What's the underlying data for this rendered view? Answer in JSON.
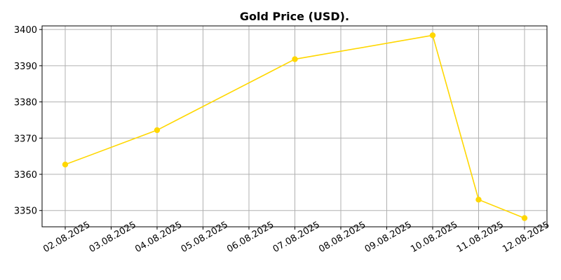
{
  "chart_data": {
    "type": "line",
    "title": "Gold Price (USD).",
    "xlabel": "",
    "ylabel": "",
    "x_ticks": [
      "02.08.2025",
      "03.08.2025",
      "04.08.2025",
      "05.08.2025",
      "06.08.2025",
      "07.08.2025",
      "08.08.2025",
      "09.08.2025",
      "10.08.2025",
      "11.08.2025",
      "12.08.2025"
    ],
    "y_ticks": [
      3350,
      3360,
      3370,
      3380,
      3390,
      3400
    ],
    "ylim": [
      3345.5,
      3401
    ],
    "xlim": [
      "01.08.2025",
      "12.08.2025"
    ],
    "grid": true,
    "series": [
      {
        "color": "#FFD700",
        "marker": "circle",
        "points": [
          {
            "x": "02.08.2025",
            "y": 3362.7
          },
          {
            "x": "04.08.2025",
            "y": 3372.2
          },
          {
            "x": "07.08.2025",
            "y": 3391.8
          },
          {
            "x": "10.08.2025",
            "y": 3398.4
          },
          {
            "x": "11.08.2025",
            "y": 3353.0
          },
          {
            "x": "12.08.2025",
            "y": 3347.9
          }
        ]
      }
    ]
  }
}
